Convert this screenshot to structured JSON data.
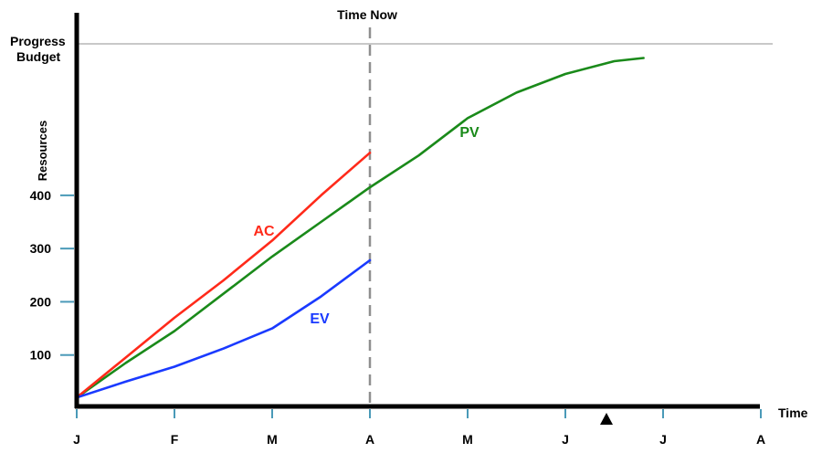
{
  "chart_data": {
    "type": "line",
    "title": "",
    "xlabel": "Time",
    "ylabel": "Resources",
    "x_ticks": [
      "J",
      "F",
      "M",
      "A",
      "M",
      "J",
      "J",
      "A"
    ],
    "y_ticks": [
      100,
      200,
      300,
      400
    ],
    "budget_label_line1": "Progress",
    "budget_label_line2": "Budget",
    "time_now_label": "Time Now",
    "time_now_x": 3,
    "series": [
      {
        "name": "PV",
        "color": "#1a8a1a",
        "points": [
          [
            0,
            20
          ],
          [
            0.5,
            85
          ],
          [
            1,
            145
          ],
          [
            1.5,
            215
          ],
          [
            2,
            285
          ],
          [
            2.5,
            350
          ],
          [
            3,
            415
          ],
          [
            3.5,
            475
          ],
          [
            4,
            545
          ],
          [
            4.5,
            593
          ],
          [
            5,
            628
          ],
          [
            5.5,
            652
          ],
          [
            5.8,
            658
          ]
        ]
      },
      {
        "name": "AC",
        "color": "#ff2a1a",
        "points": [
          [
            0,
            20
          ],
          [
            0.5,
            95
          ],
          [
            1,
            170
          ],
          [
            1.5,
            240
          ],
          [
            2,
            315
          ],
          [
            2.5,
            400
          ],
          [
            3,
            480
          ]
        ]
      },
      {
        "name": "EV",
        "color": "#1a3aff",
        "points": [
          [
            0,
            20
          ],
          [
            0.5,
            50
          ],
          [
            1,
            78
          ],
          [
            1.5,
            112
          ],
          [
            2,
            150
          ],
          [
            2.5,
            210
          ],
          [
            3,
            278
          ]
        ]
      }
    ]
  }
}
